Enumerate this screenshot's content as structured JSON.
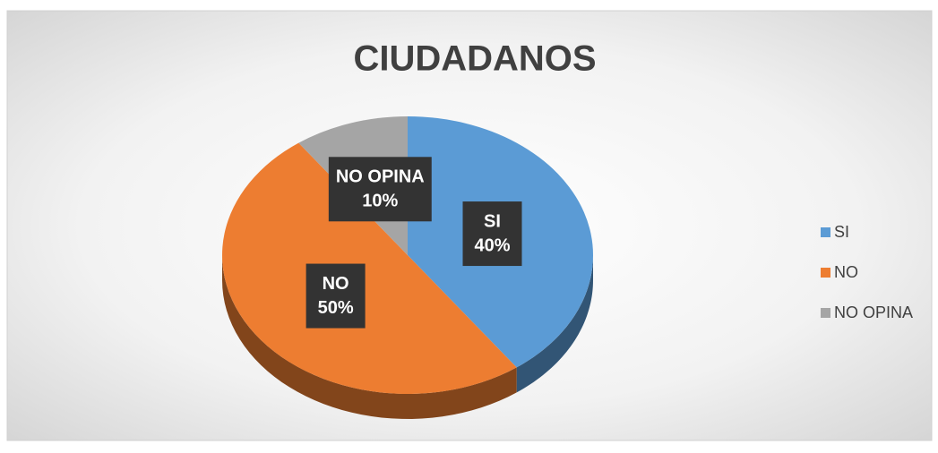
{
  "chart_data": {
    "type": "pie",
    "title": "CIUDADANOS",
    "categories": [
      "SI",
      "NO",
      "NO OPINA"
    ],
    "values": [
      40,
      50,
      10
    ],
    "value_labels": [
      "40%",
      "50%",
      "10%"
    ],
    "colors": [
      "#5b9bd5",
      "#ed7d31",
      "#a5a5a5"
    ],
    "legend": "right"
  }
}
